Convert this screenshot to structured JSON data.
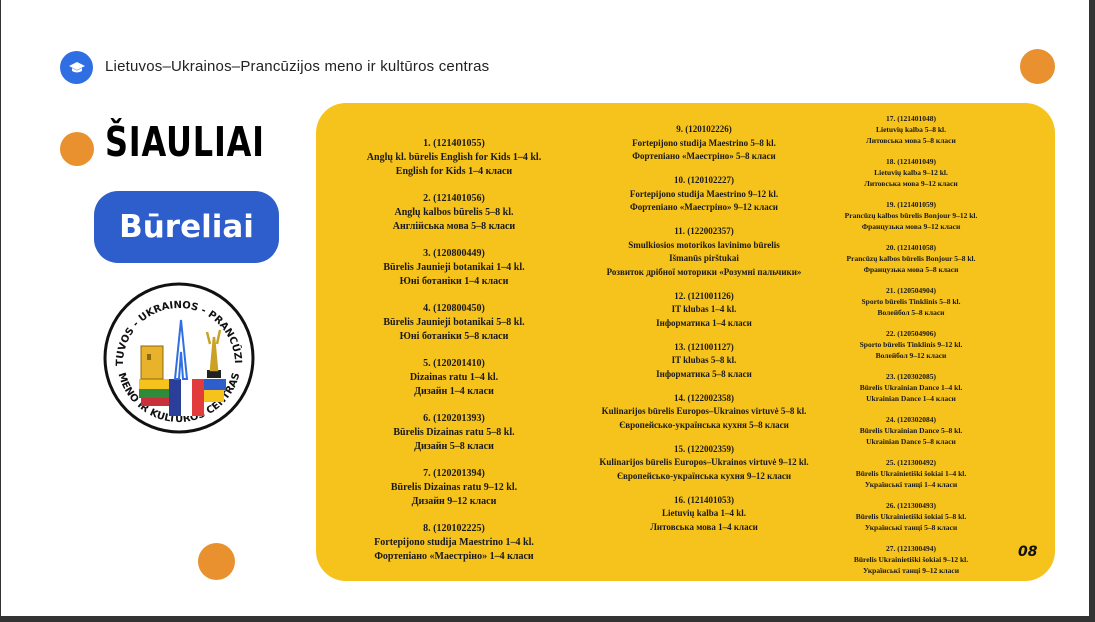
{
  "header": {
    "title": "Lietuvos–Ukrainos–Prancūzijos meno ir kultūros centras",
    "icon": "graduation-cap-icon"
  },
  "city": "ŠIAULIAI",
  "section_label": "Būreliai",
  "logo": {
    "top_text": "LIETUVOS - UKRAINOS - PRANCŪZIJOS",
    "bottom_text": "MENO IR KULTŪROS CENTRAS"
  },
  "page_number": "08",
  "colors": {
    "accent_orange": "#E8912E",
    "panel_yellow": "#F6C21C",
    "brand_blue": "#2E5ECB",
    "icon_blue": "#2F6FE3"
  },
  "columns": [
    [
      [
        "1. (121401055)",
        "Anglų kl. būrelis English for Kids 1–4 kl.",
        "English for Kids 1–4 класи"
      ],
      [
        "2. (121401056)",
        "Anglų kalbos būrelis 5–8 kl.",
        "Англійська мова 5–8 класи"
      ],
      [
        "3. (120800449)",
        "Būrelis Jaunieji botanikai 1–4 kl.",
        "Юні ботаніки 1–4 класи"
      ],
      [
        "4. (120800450)",
        "Būrelis Jaunieji botanikai 5–8 kl.",
        "Юні ботаніки 5–8 класи"
      ],
      [
        "5. (120201410)",
        "Dizainas ratu 1–4 kl.",
        "Дизайн 1–4 класи"
      ],
      [
        "6. (120201393)",
        "Būrelis Dizainas ratu 5–8 kl.",
        "Дизайн 5–8 класи"
      ],
      [
        "7. (120201394)",
        "Būrelis Dizainas ratu 9–12 kl.",
        "Дизайн 9–12 класи"
      ],
      [
        "8. (120102225)",
        "Fortepijono studija Maestrino 1–4 kl.",
        "Фортепіано «Маестріно» 1–4 класи"
      ]
    ],
    [
      [
        "9. (120102226)",
        "Fortepijono studija Maestrino 5–8 kl.",
        "Фортепіано «Маестріно» 5–8 класи"
      ],
      [
        "10. (120102227)",
        "Fortepijono studija Maestrino 9–12 kl.",
        "Фортепіано «Маестріно» 9–12 класи"
      ],
      [
        "11. (122002357)",
        "Smulkiosios motorikos lavinimo būrelis",
        "Išmanūs pirštukai",
        "Розвиток дрібної моторики «Розумні пальчики»"
      ],
      [
        "12. (121001126)",
        "IT klubas 1–4 kl.",
        "Інформатика 1–4 класи"
      ],
      [
        "13. (121001127)",
        "IT klubas 5–8 kl.",
        "Інформатика 5–8 класи"
      ],
      [
        "14. (122002358)",
        "Kulinarijos būrelis Europos–Ukrainos virtuvė 5–8 kl.",
        "Європейсько-українська кухня 5–8 класи"
      ],
      [
        "15. (122002359)",
        "Kulinarijos būrelis Europos–Ukrainos virtuvė 9–12 kl.",
        "Європейсько-українська кухня 9–12 класи"
      ],
      [
        "16. (121401053)",
        "Lietuvių kalba 1–4 kl.",
        "Литовська мова 1–4 класи"
      ]
    ],
    [
      [
        "17. (121401048)",
        "Lietuvių kalba 5–8 kl.",
        "Литовська мова 5–8 класи"
      ],
      [
        "18. (121401049)",
        "Lietuvių kalba 9–12 kl.",
        "Литовська мова 9–12 класи"
      ],
      [
        "19. (121401059)",
        "Prancūzų kalbos būrelis Bonjour 9–12 kl.",
        "Французька мова 9–12 класи"
      ],
      [
        "20. (121401058)",
        "Prancūzų kalbos būrelis Bonjour 5–8 kl.",
        "Французька мова 5–8 класи"
      ],
      [
        "21. (120504904)",
        "Sporto būrelis Tinklinis 5–8 kl.",
        "Волейбол 5–8 класи"
      ],
      [
        "22. (120504906)",
        "Sporto būrelis Tinklinis 9–12 kl.",
        "Волейбол 9–12 класи"
      ],
      [
        "23. (120302085)",
        "Būrelis Ukrainian Dance 1–4 kl.",
        "Ukrainian Dance 1–4 класи"
      ],
      [
        "24. (120302084)",
        "Būrelis Ukrainian Dance 5–8 kl.",
        "Ukrainian Dance 5–8 класи"
      ],
      [
        "25. (121300492)",
        "Būrelis Ukrainietiški šokiai 1–4 kl.",
        "Українські танці 1–4 класи"
      ],
      [
        "26. (121300493)",
        "Būrelis Ukrainietiški šokiai 5–8 kl.",
        "Українські танці 5–8 класи"
      ],
      [
        "27. (121300494)",
        "Būrelis Ukrainietiški šokiai 9–12 kl.",
        "Українські танці 9–12 класи"
      ]
    ]
  ]
}
